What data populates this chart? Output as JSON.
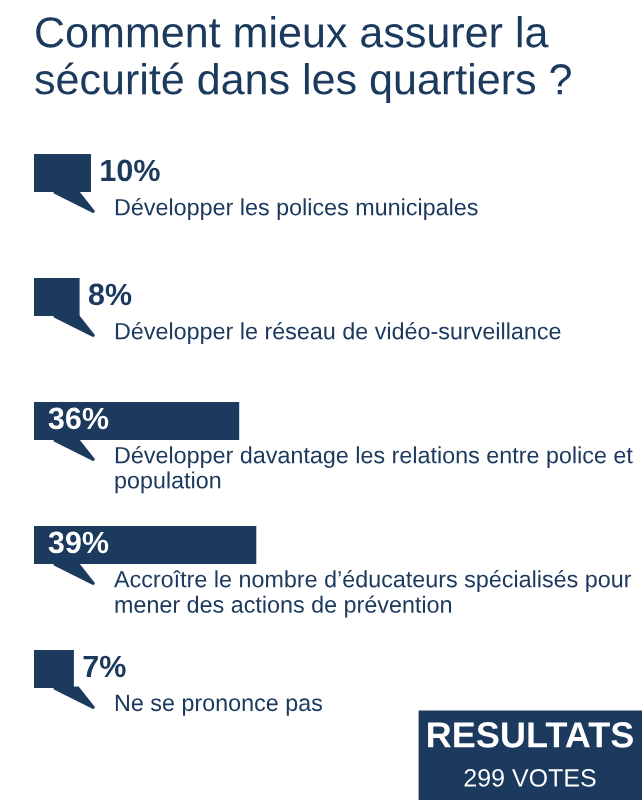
{
  "chart_data": {
    "type": "bar",
    "orientation": "horizontal",
    "title": "Comment mieux assurer la sécurité dans les quartiers ?",
    "categories": [
      "Développer les polices municipales",
      "Développer le réseau de vidéo-surveillance",
      "Développer davantage les relations entre police et population",
      "Accroître le nombre d’éducateurs spécialisés pour mener des actions de prévention",
      "Ne se prononce pas"
    ],
    "values": [
      10,
      8,
      36,
      39,
      7
    ],
    "color": "#1c3a5e",
    "value_labels": [
      "10%",
      "8%",
      "36%",
      "39%",
      "7%"
    ],
    "annotations": [
      "RESULTATS",
      "299 VOTES"
    ]
  }
}
